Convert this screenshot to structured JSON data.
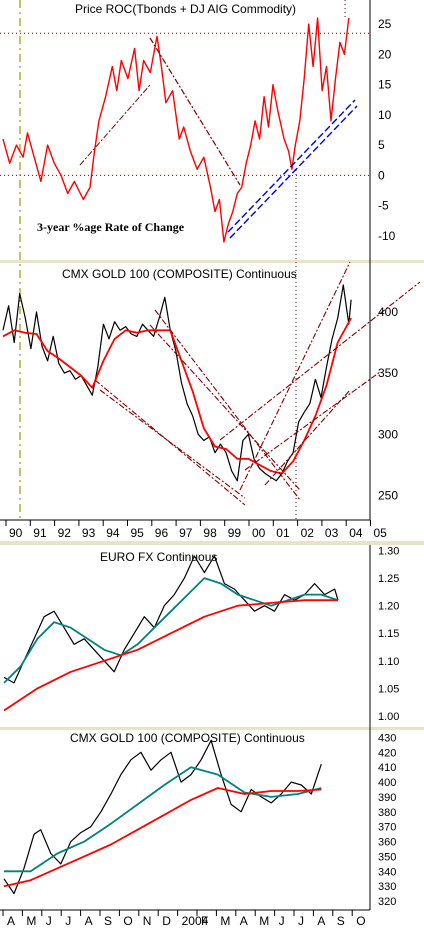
{
  "chart_data": [
    {
      "type": "line",
      "title": "Price ROC(Tbonds + DJ AIG Commodity)",
      "annotation": "3-year %age Rate of Change",
      "x_range": [
        1989.0,
        2005.0
      ],
      "ylim": [
        -14,
        29
      ],
      "y_ticks": [
        25,
        20,
        15,
        10,
        5,
        0,
        -5,
        -10
      ],
      "colors": {
        "series": "#ff0000",
        "trend": "#800000",
        "support": "#0000cc"
      },
      "reference_lines": [
        23.5,
        0
      ],
      "series": [
        {
          "x": [
            1989.0,
            1989.3,
            1989.6,
            1989.9,
            1990.1,
            1990.4,
            1990.7,
            1991.0,
            1991.3,
            1991.6,
            1991.9,
            1992.2,
            1992.6,
            1992.9,
            1993.1,
            1993.3,
            1993.6,
            1993.9,
            1994.1,
            1994.3,
            1994.6,
            1994.9,
            1995.1,
            1995.3,
            1995.6,
            1995.9,
            1996.1,
            1996.3,
            1996.6,
            1996.9,
            1997.1,
            1997.4,
            1997.7,
            1998.0,
            1998.3,
            1998.5,
            1998.7,
            1998.9,
            1999.1,
            1999.3,
            1999.5,
            1999.7,
            1999.9,
            2000.1,
            2000.3,
            2000.5,
            2000.7,
            2000.9,
            2001.1,
            2001.3,
            2001.6,
            2001.8,
            2001.95,
            2002.1,
            2002.3,
            2002.5,
            2002.7,
            2002.9,
            2003.1,
            2003.3,
            2003.5,
            2003.7,
            2003.9,
            2004.1,
            2004.3,
            2004.5
          ],
          "values": [
            6,
            2,
            5,
            3,
            7,
            3,
            -1,
            5,
            2,
            0,
            -3,
            -1,
            -4,
            -2,
            4,
            9,
            13,
            18,
            14,
            19,
            16,
            21,
            14,
            19,
            17,
            23,
            18,
            12,
            14,
            6,
            8,
            4,
            1,
            3,
            -2,
            -6,
            -4,
            -11,
            -8,
            -6,
            -3,
            -2,
            2,
            5,
            9,
            6,
            13,
            8,
            15,
            11,
            6,
            4,
            1,
            5,
            9,
            16,
            25,
            18,
            26,
            14,
            18,
            9,
            16,
            22,
            20,
            26
          ]
        }
      ]
    },
    {
      "type": "line",
      "title": "CMX GOLD 100 (COMPOSITE) Continuous",
      "x_range": [
        1989.0,
        2005.0
      ],
      "ylim": [
        230,
        440
      ],
      "y_ticks": [
        400,
        350,
        300,
        250
      ],
      "x_ticks": [
        "90",
        "91",
        "92",
        "93",
        "94",
        "95",
        "96",
        "97",
        "98",
        "99",
        "00",
        "01",
        "02",
        "03",
        "04",
        "05"
      ],
      "colors": {
        "price": "#000000",
        "moving_average": "#ff0000",
        "channel": "#800000"
      },
      "series": [
        {
          "name": "",
          "x": [
            1989.0,
            1989.25,
            1989.5,
            1989.75,
            1990.0,
            1990.25,
            1990.5,
            1990.75,
            1991.0,
            1991.25,
            1991.5,
            1991.75,
            1992.0,
            1992.25,
            1992.5,
            1992.75,
            1993.0,
            1993.25,
            1993.5,
            1993.75,
            1994.0,
            1994.25,
            1994.5,
            1994.75,
            1995.0,
            1995.25,
            1995.5,
            1995.75,
            1996.0,
            1996.25,
            1996.5,
            1996.75,
            1997.0,
            1997.25,
            1997.5,
            1997.75,
            1998.0,
            1998.25,
            1998.5,
            1998.75,
            1999.0,
            1999.25,
            1999.5,
            1999.75,
            2000.0,
            2000.25,
            2000.5,
            2000.75,
            2001.0,
            2001.25,
            2001.5,
            2001.75,
            2002.0,
            2002.25,
            2002.5,
            2002.75,
            2003.0,
            2003.25,
            2003.5,
            2003.75,
            2004.0,
            2004.25,
            2004.5,
            2004.6
          ],
          "values": [
            385,
            405,
            375,
            415,
            395,
            370,
            400,
            372,
            360,
            380,
            358,
            350,
            352,
            345,
            348,
            340,
            332,
            355,
            390,
            378,
            392,
            385,
            388,
            382,
            380,
            390,
            385,
            380,
            395,
            412,
            385,
            368,
            342,
            325,
            315,
            300,
            295,
            298,
            285,
            292,
            285,
            270,
            262,
            295,
            300,
            280,
            272,
            268,
            265,
            262,
            268,
            278,
            285,
            310,
            318,
            325,
            345,
            330,
            355,
            378,
            395,
            422,
            390,
            410
          ]
        },
        {
          "name": "",
          "x": [
            1989.0,
            1989.5,
            1990.0,
            1990.5,
            1991.0,
            1991.5,
            1992.0,
            1992.5,
            1993.0,
            1993.5,
            1994.0,
            1994.5,
            1995.0,
            1995.5,
            1996.0,
            1996.5,
            1997.0,
            1997.5,
            1998.0,
            1998.5,
            1999.0,
            1999.5,
            2000.0,
            2000.5,
            2001.0,
            2001.5,
            2002.0,
            2002.5,
            2003.0,
            2003.5,
            2004.0,
            2004.6
          ],
          "values": [
            380,
            385,
            383,
            382,
            368,
            362,
            355,
            348,
            338,
            360,
            378,
            385,
            383,
            385,
            385,
            385,
            360,
            335,
            305,
            290,
            288,
            280,
            280,
            275,
            270,
            268,
            278,
            295,
            315,
            340,
            375,
            395
          ]
        }
      ]
    },
    {
      "type": "line",
      "title": "EURO FX Continuous",
      "x_range": [
        0,
        100
      ],
      "ylim": [
        0.98,
        1.31
      ],
      "y_ticks": [
        "1.30",
        "1.25",
        "1.20",
        "1.15",
        "1.10",
        "1.05",
        "1.00"
      ],
      "colors": {
        "price": "#000000",
        "fast_average": "#008080",
        "slow_average": "#ff0000"
      },
      "series": [
        {
          "name": "",
          "x": [
            0,
            3,
            6,
            9,
            12,
            15,
            18,
            21,
            24,
            27,
            30,
            33,
            36,
            39,
            42,
            45,
            48,
            51,
            54,
            57,
            60,
            63,
            66,
            69,
            72,
            75,
            78,
            81,
            84,
            87,
            90,
            93,
            96,
            99,
            100
          ],
          "values": [
            1.07,
            1.06,
            1.1,
            1.14,
            1.18,
            1.19,
            1.16,
            1.13,
            1.14,
            1.12,
            1.1,
            1.08,
            1.12,
            1.15,
            1.18,
            1.16,
            1.2,
            1.22,
            1.25,
            1.29,
            1.26,
            1.29,
            1.24,
            1.23,
            1.21,
            1.19,
            1.2,
            1.19,
            1.22,
            1.21,
            1.22,
            1.24,
            1.22,
            1.23,
            1.21
          ]
        },
        {
          "name": "",
          "x": [
            0,
            5,
            10,
            15,
            20,
            25,
            30,
            35,
            40,
            45,
            50,
            55,
            60,
            65,
            70,
            75,
            80,
            85,
            90,
            95,
            100
          ],
          "values": [
            1.06,
            1.09,
            1.14,
            1.17,
            1.16,
            1.14,
            1.12,
            1.11,
            1.13,
            1.16,
            1.19,
            1.22,
            1.25,
            1.24,
            1.22,
            1.21,
            1.2,
            1.21,
            1.22,
            1.22,
            1.21
          ]
        },
        {
          "name": "",
          "x": [
            0,
            10,
            20,
            30,
            40,
            50,
            60,
            70,
            80,
            90,
            100
          ],
          "values": [
            1.01,
            1.05,
            1.08,
            1.1,
            1.12,
            1.15,
            1.18,
            1.2,
            1.205,
            1.21,
            1.21
          ]
        }
      ]
    },
    {
      "type": "line",
      "title": "CMX GOLD 100 (COMPOSITE) Continuous",
      "x_range": [
        0,
        100
      ],
      "ylim": [
        314,
        435
      ],
      "y_ticks": [
        430,
        420,
        410,
        400,
        390,
        380,
        370,
        360,
        350,
        340,
        330,
        320
      ],
      "x_ticks": [
        "A",
        "M",
        "J",
        "J",
        "A",
        "S",
        "O",
        "N",
        "D",
        "2004",
        "F",
        "M",
        "A",
        "M",
        "J",
        "J",
        "A",
        "S",
        "O"
      ],
      "colors": {
        "price": "#000000",
        "fast_average": "#008080",
        "slow_average": "#ff0000"
      },
      "series": [
        {
          "name": "",
          "x": [
            0,
            3,
            6,
            9,
            11,
            14,
            17,
            20,
            23,
            26,
            29,
            32,
            35,
            38,
            41,
            44,
            47,
            50,
            53,
            56,
            59,
            62,
            65,
            68,
            71,
            74,
            77,
            80,
            83,
            86,
            89,
            92,
            95
          ],
          "values": [
            335,
            325,
            342,
            365,
            368,
            352,
            345,
            360,
            366,
            370,
            380,
            392,
            405,
            415,
            420,
            408,
            415,
            420,
            400,
            405,
            415,
            428,
            405,
            385,
            380,
            395,
            390,
            386,
            392,
            400,
            398,
            392,
            412
          ]
        },
        {
          "name": "",
          "x": [
            0,
            8,
            16,
            24,
            32,
            40,
            48,
            56,
            64,
            72,
            80,
            88,
            95
          ],
          "values": [
            340,
            340,
            352,
            360,
            372,
            385,
            398,
            410,
            405,
            393,
            390,
            392,
            396
          ]
        },
        {
          "name": "",
          "x": [
            0,
            8,
            16,
            24,
            32,
            40,
            48,
            56,
            64,
            72,
            80,
            88,
            95
          ],
          "values": [
            330,
            334,
            342,
            350,
            358,
            368,
            378,
            388,
            396,
            392,
            394,
            394,
            395
          ]
        }
      ]
    }
  ]
}
